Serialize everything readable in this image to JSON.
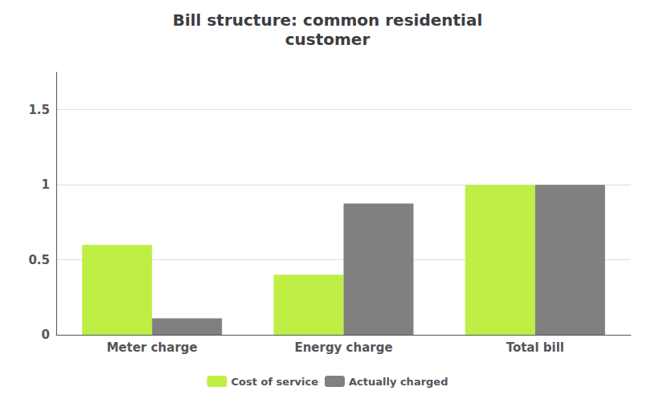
{
  "chart_data": {
    "type": "bar",
    "title": "Bill structure: common residential\ncustomer",
    "categories": [
      "Meter charge",
      "Energy charge",
      "Total bill"
    ],
    "series": [
      {
        "name": "Cost of service",
        "color": "#BFEF45",
        "values": [
          0.6,
          0.4,
          1.0
        ]
      },
      {
        "name": "Actually charged",
        "color": "#808080",
        "values": [
          0.11,
          0.875,
          1.0
        ]
      }
    ],
    "ylim": [
      0,
      1.75
    ],
    "yticks": [
      0,
      0.5,
      1,
      1.5
    ],
    "grid": true,
    "legend": "bottom"
  }
}
